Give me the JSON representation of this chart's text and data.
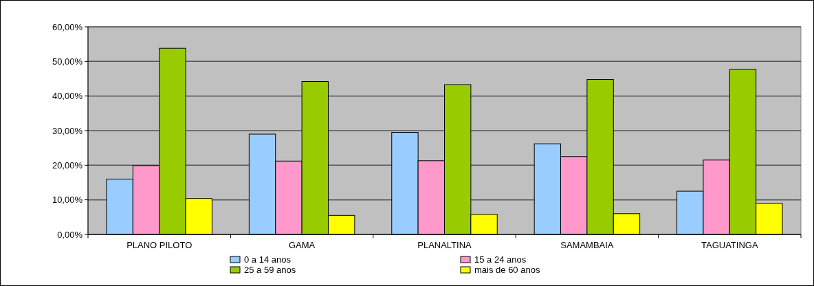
{
  "chart_data": {
    "type": "bar",
    "categories": [
      "PLANO PILOTO",
      "GAMA",
      "PLANALTINA",
      "SAMAMBAIA",
      "TAGUATINGA"
    ],
    "series": [
      {
        "name": "0 a 14 anos",
        "color": "#99ccff",
        "values": [
          16.0,
          29.0,
          29.5,
          26.2,
          12.5
        ]
      },
      {
        "name": "15 a 24 anos",
        "color": "#ff99cc",
        "values": [
          19.9,
          21.2,
          21.3,
          22.5,
          21.5
        ]
      },
      {
        "name": "25 a 59 anos",
        "color": "#99cc00",
        "values": [
          53.8,
          44.2,
          43.3,
          44.8,
          47.7
        ]
      },
      {
        "name": "mais de 60 anos",
        "color": "#ffff00",
        "values": [
          10.4,
          5.5,
          5.8,
          6.0,
          9.0
        ]
      }
    ],
    "ylim": [
      0,
      60
    ],
    "yticks": [
      {
        "value": 0,
        "label": "0,00%"
      },
      {
        "value": 10,
        "label": "10,00%"
      },
      {
        "value": 20,
        "label": "20,00%"
      },
      {
        "value": 30,
        "label": "30,00%"
      },
      {
        "value": 40,
        "label": "40,00%"
      },
      {
        "value": 50,
        "label": "50,00%"
      },
      {
        "value": 60,
        "label": "60,00%"
      }
    ],
    "grid": "y",
    "legend": "bottom"
  }
}
